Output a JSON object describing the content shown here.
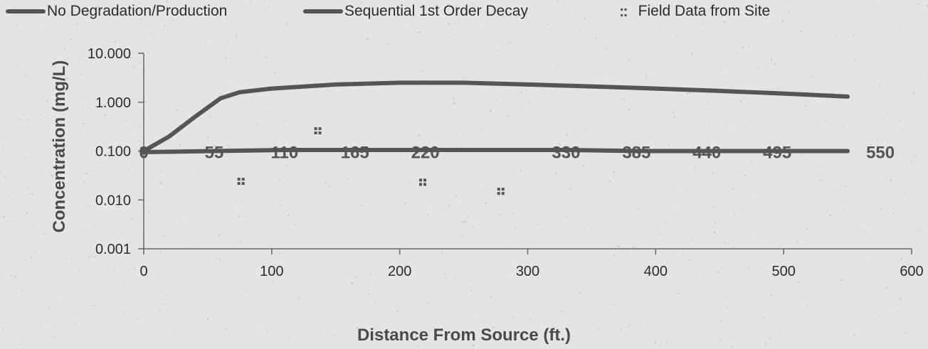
{
  "legend": {
    "items": [
      {
        "label": "No Degradation/Production",
        "marker": "line"
      },
      {
        "label": "Sequential 1st Order Decay",
        "marker": "line"
      },
      {
        "label": "Field Data from Site",
        "marker": "dots"
      }
    ]
  },
  "colors": {
    "background": "#e4e4e4",
    "series_line": "#555555",
    "axis": "#666666",
    "text": "#2c2c2c"
  },
  "chart_data": {
    "type": "line",
    "title": "",
    "xlabel": "Distance From Source (ft.)",
    "ylabel": "Concentration (mg/L)",
    "xlim": [
      0,
      600
    ],
    "ylim": [
      0.001,
      10
    ],
    "y_scale": "log",
    "x_ticks": [
      "0",
      "100",
      "200",
      "300",
      "400",
      "500",
      "600"
    ],
    "y_ticks": [
      "10.000",
      "1.000",
      "0.100",
      "0.010",
      "0.001"
    ],
    "y_tick_values": [
      10,
      1,
      0.1,
      0.01,
      0.001
    ],
    "grid": false,
    "legend_position": "top",
    "series": [
      {
        "name": "No Degradation/Production",
        "marker": "line",
        "x": [
          0,
          20,
          40,
          60,
          75,
          100,
          150,
          200,
          250,
          300,
          350,
          400,
          450,
          500,
          550
        ],
        "y": [
          0.1,
          0.2,
          0.5,
          1.2,
          1.6,
          1.9,
          2.3,
          2.5,
          2.5,
          2.3,
          2.1,
          1.9,
          1.7,
          1.5,
          1.3
        ]
      },
      {
        "name": "Sequential 1st Order Decay",
        "marker": "line",
        "x": [
          0,
          55,
          110,
          165,
          220,
          275,
          330,
          385,
          440,
          495,
          550
        ],
        "y": [
          0.095,
          0.1,
          0.105,
          0.105,
          0.105,
          0.105,
          0.105,
          0.1,
          0.1,
          0.1,
          0.1
        ]
      },
      {
        "name": "Field Data from Site",
        "marker": "dots",
        "x": [
          0,
          76,
          136,
          218,
          279
        ],
        "y": [
          0.1,
          0.024,
          0.26,
          0.023,
          0.015
        ]
      }
    ],
    "data_labels": [
      {
        "x": 0,
        "text": "0"
      },
      {
        "x": 55,
        "text": "55"
      },
      {
        "x": 110,
        "text": "110"
      },
      {
        "x": 165,
        "text": "165"
      },
      {
        "x": 220,
        "text": "220"
      },
      {
        "x": 330,
        "text": "330"
      },
      {
        "x": 385,
        "text": "385"
      },
      {
        "x": 440,
        "text": "440"
      },
      {
        "x": 495,
        "text": "495"
      },
      {
        "x": 550,
        "text": "550"
      }
    ],
    "data_label_y": 0.1
  }
}
